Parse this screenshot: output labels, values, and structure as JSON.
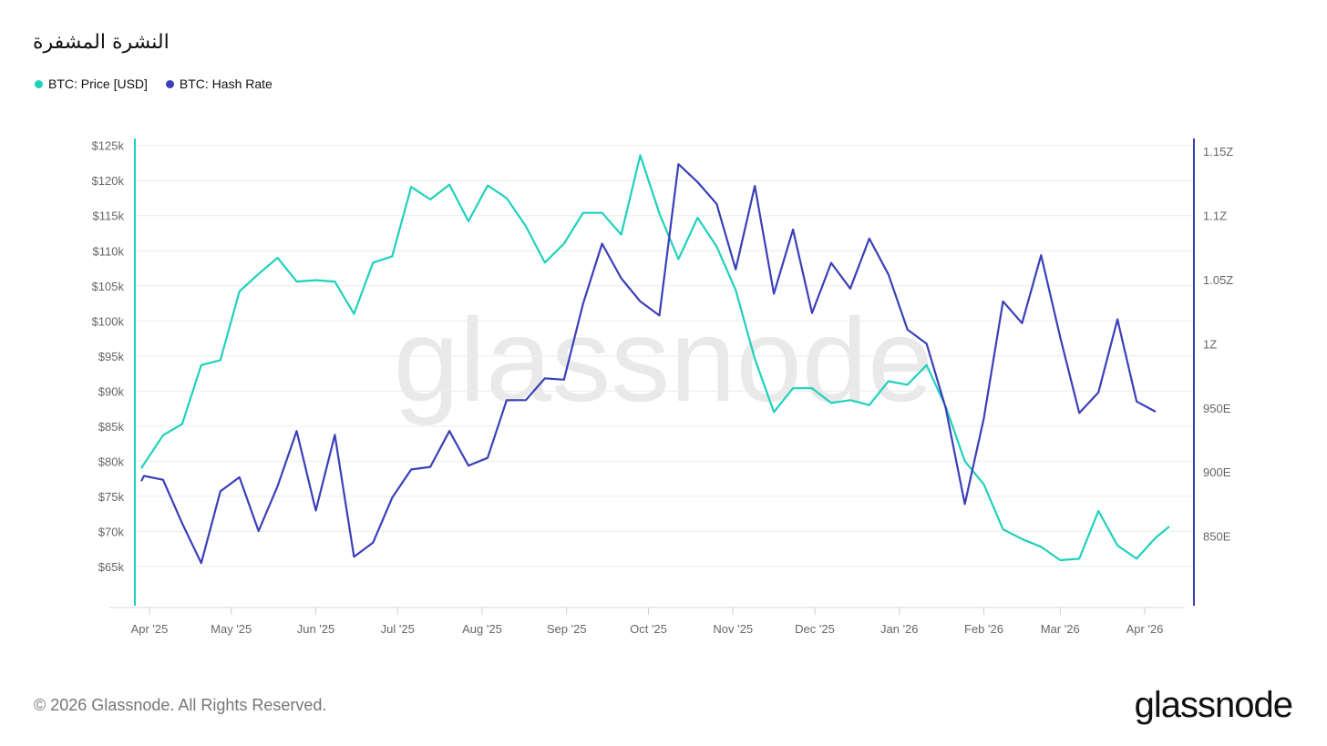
{
  "title": "النشرة المشفرة",
  "legend": [
    {
      "label": "BTC: Price [USD]",
      "color": "#1fd1bd"
    },
    {
      "label": "BTC: Hash Rate",
      "color": "#3b3fb8"
    }
  ],
  "footer": "© 2026 Glassnode. All Rights Reserved.",
  "brand": "glassnode",
  "watermark": "glassnode",
  "chart_data": {
    "type": "line",
    "x_tick_labels": [
      "Apr '25",
      "May '25",
      "Jun '25",
      "Jul '25",
      "Aug '25",
      "Sep '25",
      "Oct '25",
      "Nov '25",
      "Dec '25",
      "Jan '26",
      "Feb '26",
      "Mar '26",
      "Apr '26"
    ],
    "x_tick_dates": [
      "2025-04-01",
      "2025-05-01",
      "2025-06-01",
      "2025-07-01",
      "2025-08-01",
      "2025-09-01",
      "2025-10-01",
      "2025-11-01",
      "2025-12-01",
      "2026-01-01",
      "2026-02-01",
      "2026-03-01",
      "2026-04-01"
    ],
    "xlim": [
      "2025-03-29",
      "2026-04-05"
    ],
    "y_left": {
      "tick_labels": [
        "$65k",
        "$70k",
        "$75k",
        "$80k",
        "$85k",
        "$90k",
        "$95k",
        "$100k",
        "$105k",
        "$110k",
        "$115k",
        "$120k",
        "$125k"
      ],
      "ticks": [
        65000,
        70000,
        75000,
        80000,
        85000,
        90000,
        95000,
        100000,
        105000,
        110000,
        115000,
        120000,
        125000
      ],
      "ylim": [
        62000,
        126000
      ],
      "color": "#1fd1bd"
    },
    "y_right": {
      "tick_labels": [
        "850E",
        "900E",
        "950E",
        "1Z",
        "1.05Z",
        "1.1Z",
        "1.15Z"
      ],
      "ticks": [
        850,
        900,
        950,
        1000,
        1050,
        1100,
        1150
      ],
      "ylim": [
        810,
        1160
      ],
      "color": "#3b3fb8"
    },
    "grid": true,
    "series": [
      {
        "name": "BTC: Price [USD]",
        "axis": "left",
        "color": "#1fd1bd",
        "points": [
          [
            "2025-03-29",
            79000
          ],
          [
            "2025-04-06",
            83700
          ],
          [
            "2025-04-13",
            85300
          ],
          [
            "2025-04-20",
            93700
          ],
          [
            "2025-04-27",
            94400
          ],
          [
            "2025-05-04",
            104200
          ],
          [
            "2025-05-11",
            106700
          ],
          [
            "2025-05-18",
            109000
          ],
          [
            "2025-05-25",
            105600
          ],
          [
            "2025-06-01",
            105800
          ],
          [
            "2025-06-08",
            105600
          ],
          [
            "2025-06-15",
            101000
          ],
          [
            "2025-06-22",
            108300
          ],
          [
            "2025-06-29",
            109200
          ],
          [
            "2025-07-06",
            119100
          ],
          [
            "2025-07-13",
            117300
          ],
          [
            "2025-07-20",
            119400
          ],
          [
            "2025-07-27",
            114200
          ],
          [
            "2025-08-03",
            119300
          ],
          [
            "2025-08-10",
            117500
          ],
          [
            "2025-08-17",
            113500
          ],
          [
            "2025-08-24",
            108300
          ],
          [
            "2025-08-31",
            111000
          ],
          [
            "2025-09-07",
            115400
          ],
          [
            "2025-09-14",
            115400
          ],
          [
            "2025-09-21",
            112300
          ],
          [
            "2025-09-28",
            123600
          ],
          [
            "2025-10-05",
            115300
          ],
          [
            "2025-10-12",
            108800
          ],
          [
            "2025-10-19",
            114700
          ],
          [
            "2025-10-26",
            110600
          ],
          [
            "2025-11-02",
            104400
          ],
          [
            "2025-11-09",
            94600
          ],
          [
            "2025-11-16",
            87000
          ],
          [
            "2025-11-23",
            90400
          ],
          [
            "2025-11-30",
            90400
          ],
          [
            "2025-12-07",
            88300
          ],
          [
            "2025-12-14",
            88700
          ],
          [
            "2025-12-21",
            88000
          ],
          [
            "2025-12-28",
            91400
          ],
          [
            "2026-01-04",
            90900
          ],
          [
            "2026-01-11",
            93700
          ],
          [
            "2026-01-18",
            87800
          ],
          [
            "2026-01-25",
            80000
          ],
          [
            "2026-02-01",
            76700
          ],
          [
            "2026-02-08",
            70300
          ],
          [
            "2026-02-15",
            68900
          ],
          [
            "2026-02-22",
            67800
          ],
          [
            "2026-03-01",
            65900
          ],
          [
            "2026-03-08",
            66100
          ],
          [
            "2026-03-15",
            72900
          ],
          [
            "2026-03-22",
            68000
          ],
          [
            "2026-03-29",
            66100
          ],
          [
            "2026-04-05",
            69100
          ],
          [
            "2026-04-10",
            70700
          ]
        ]
      },
      {
        "name": "BTC: Hash Rate",
        "axis": "right",
        "color": "#3b3fb8",
        "points": [
          [
            "2025-03-29",
            893
          ],
          [
            "2025-03-30",
            897
          ],
          [
            "2025-04-06",
            894
          ],
          [
            "2025-04-13",
            860
          ],
          [
            "2025-04-20",
            829
          ],
          [
            "2025-04-27",
            885
          ],
          [
            "2025-05-04",
            896
          ],
          [
            "2025-05-11",
            854
          ],
          [
            "2025-05-18",
            889
          ],
          [
            "2025-05-25",
            932
          ],
          [
            "2025-06-01",
            870
          ],
          [
            "2025-06-08",
            929
          ],
          [
            "2025-06-15",
            834
          ],
          [
            "2025-06-22",
            845
          ],
          [
            "2025-06-29",
            880
          ],
          [
            "2025-07-06",
            902
          ],
          [
            "2025-07-13",
            904
          ],
          [
            "2025-07-20",
            932
          ],
          [
            "2025-07-27",
            905
          ],
          [
            "2025-08-03",
            911
          ],
          [
            "2025-08-10",
            956
          ],
          [
            "2025-08-17",
            956
          ],
          [
            "2025-08-24",
            973
          ],
          [
            "2025-08-31",
            972
          ],
          [
            "2025-09-07",
            1031
          ],
          [
            "2025-09-14",
            1078
          ],
          [
            "2025-09-21",
            1051
          ],
          [
            "2025-09-28",
            1033
          ],
          [
            "2025-10-05",
            1022
          ],
          [
            "2025-10-12",
            1140
          ],
          [
            "2025-10-19",
            1126
          ],
          [
            "2025-10-26",
            1109
          ],
          [
            "2025-11-02",
            1058
          ],
          [
            "2025-11-09",
            1123
          ],
          [
            "2025-11-16",
            1039
          ],
          [
            "2025-11-23",
            1089
          ],
          [
            "2025-11-30",
            1024
          ],
          [
            "2025-12-07",
            1063
          ],
          [
            "2025-12-14",
            1043
          ],
          [
            "2025-12-21",
            1082
          ],
          [
            "2025-12-28",
            1054
          ],
          [
            "2026-01-04",
            1011
          ],
          [
            "2026-01-11",
            1000
          ],
          [
            "2026-01-18",
            950
          ],
          [
            "2026-01-25",
            875
          ],
          [
            "2026-02-01",
            942
          ],
          [
            "2026-02-08",
            1033
          ],
          [
            "2026-02-15",
            1016
          ],
          [
            "2026-02-22",
            1069
          ],
          [
            "2026-03-01",
            1005
          ],
          [
            "2026-03-08",
            946
          ],
          [
            "2026-03-15",
            962
          ],
          [
            "2026-03-22",
            1019
          ],
          [
            "2026-03-29",
            955
          ],
          [
            "2026-04-05",
            947
          ]
        ]
      }
    ]
  }
}
